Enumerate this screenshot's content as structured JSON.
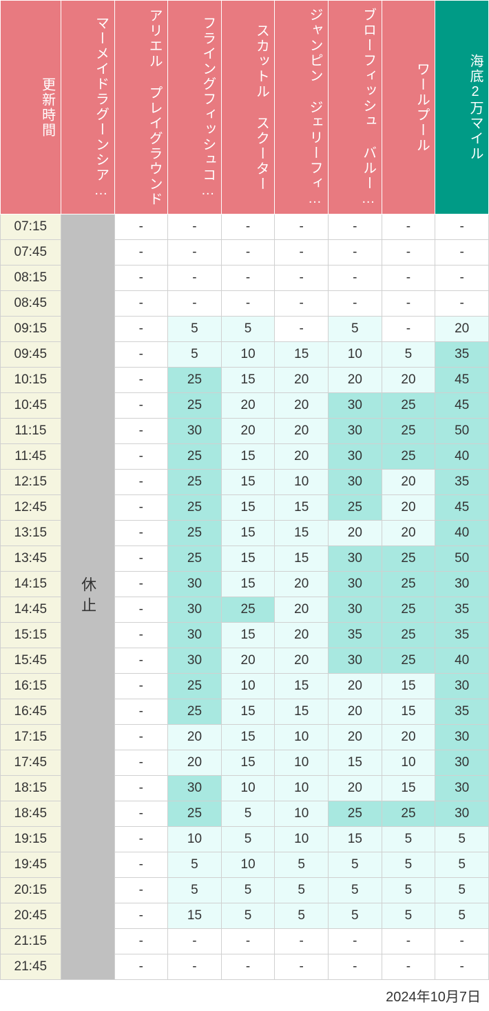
{
  "date_label": "2024年10月7日",
  "closed_label": "休止",
  "colors": {
    "header_red": "#e87a80",
    "header_teal": "#009b86",
    "time_bg": "#f5f5e0",
    "closed_bg": "#c0c0c0",
    "cell_white": "#ffffff",
    "cell_light": "#e8fcfa",
    "cell_medium": "#a8e8e0",
    "border": "#d0d0d0"
  },
  "thresholds": {
    "light_min": 5,
    "medium_min": 25
  },
  "headers": [
    {
      "label": "更新時間",
      "type": "time"
    },
    {
      "label": "マーメイドラグーンシア…",
      "type": "attraction"
    },
    {
      "label": "アリエル プレイグラウンド",
      "type": "attraction"
    },
    {
      "label": "フライングフィッシュコ…",
      "type": "attraction"
    },
    {
      "label": "スカットル スクーター",
      "type": "attraction"
    },
    {
      "label": "ジャンピン ジェリーフィ…",
      "type": "attraction"
    },
    {
      "label": "ブローフィッシュ バルー…",
      "type": "attraction"
    },
    {
      "label": "ワールプール",
      "type": "attraction"
    },
    {
      "label": "海底2万マイル",
      "type": "highlight"
    }
  ],
  "times": [
    "07:15",
    "07:45",
    "08:15",
    "08:45",
    "09:15",
    "09:45",
    "10:15",
    "10:45",
    "11:15",
    "11:45",
    "12:15",
    "12:45",
    "13:15",
    "13:45",
    "14:15",
    "14:45",
    "15:15",
    "15:45",
    "16:15",
    "16:45",
    "17:15",
    "17:45",
    "18:15",
    "18:45",
    "19:15",
    "19:45",
    "20:15",
    "20:45",
    "21:15",
    "21:45"
  ],
  "columns_data": {
    "col1_closed": true,
    "col2": [
      "-",
      "-",
      "-",
      "-",
      "-",
      "-",
      "-",
      "-",
      "-",
      "-",
      "-",
      "-",
      "-",
      "-",
      "-",
      "-",
      "-",
      "-",
      "-",
      "-",
      "-",
      "-",
      "-",
      "-",
      "-",
      "-",
      "-",
      "-",
      "-",
      "-"
    ],
    "col3": [
      "-",
      "-",
      "-",
      "-",
      5,
      5,
      25,
      25,
      30,
      25,
      25,
      25,
      25,
      25,
      30,
      30,
      30,
      30,
      25,
      25,
      20,
      20,
      30,
      25,
      10,
      5,
      5,
      15,
      "-",
      "-"
    ],
    "col4": [
      "-",
      "-",
      "-",
      "-",
      5,
      10,
      15,
      20,
      20,
      15,
      15,
      15,
      15,
      15,
      15,
      25,
      15,
      20,
      10,
      15,
      15,
      15,
      10,
      5,
      5,
      10,
      5,
      5,
      "-",
      "-"
    ],
    "col5": [
      "-",
      "-",
      "-",
      "-",
      "-",
      15,
      20,
      20,
      20,
      20,
      10,
      15,
      15,
      15,
      20,
      20,
      20,
      20,
      15,
      15,
      10,
      10,
      10,
      10,
      10,
      5,
      5,
      5,
      "-",
      "-"
    ],
    "col6": [
      "-",
      "-",
      "-",
      "-",
      5,
      10,
      20,
      30,
      30,
      30,
      30,
      25,
      20,
      30,
      30,
      30,
      35,
      30,
      20,
      20,
      20,
      15,
      20,
      25,
      15,
      5,
      5,
      5,
      "-",
      "-"
    ],
    "col7": [
      "-",
      "-",
      "-",
      "-",
      "-",
      5,
      20,
      25,
      25,
      25,
      20,
      20,
      20,
      25,
      25,
      25,
      25,
      25,
      15,
      15,
      20,
      10,
      15,
      25,
      5,
      5,
      5,
      5,
      "-",
      "-"
    ],
    "col8": [
      "-",
      "-",
      "-",
      "-",
      20,
      35,
      45,
      45,
      50,
      40,
      35,
      45,
      40,
      50,
      30,
      35,
      35,
      40,
      30,
      35,
      30,
      30,
      30,
      30,
      5,
      5,
      5,
      5,
      "-",
      "-"
    ]
  }
}
